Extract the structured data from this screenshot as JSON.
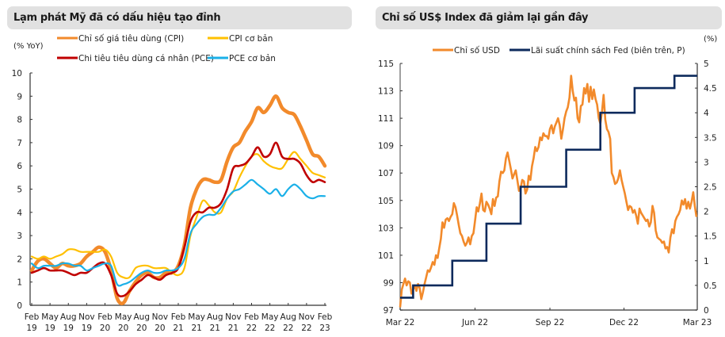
{
  "chart_data": [
    {
      "type": "line",
      "title": "Lạm phát Mỹ đã có dấu hiệu tạo đỉnh",
      "ylabel": "(% YoY)",
      "xlabel": "",
      "ylim": [
        0,
        10
      ],
      "yticks": [
        0,
        1,
        2,
        3,
        4,
        5,
        6,
        7,
        8,
        9,
        10
      ],
      "xtick_labels": [
        [
          "Feb",
          "19"
        ],
        [
          "May",
          "19"
        ],
        [
          "Aug",
          "19"
        ],
        [
          "Nov",
          "19"
        ],
        [
          "Feb",
          "20"
        ],
        [
          "May",
          "20"
        ],
        [
          "Aug",
          "20"
        ],
        [
          "Nov",
          "20"
        ],
        [
          "Feb",
          "21"
        ],
        [
          "May",
          "21"
        ],
        [
          "Aug",
          "21"
        ],
        [
          "Nov",
          "21"
        ],
        [
          "Feb",
          "22"
        ],
        [
          "May",
          "22"
        ],
        [
          "Aug",
          "22"
        ],
        [
          "Nov",
          "22"
        ],
        [
          "Feb",
          "23"
        ]
      ],
      "x": [
        "2019-02",
        "2019-03",
        "2019-04",
        "2019-05",
        "2019-06",
        "2019-07",
        "2019-08",
        "2019-09",
        "2019-10",
        "2019-11",
        "2019-12",
        "2020-01",
        "2020-02",
        "2020-03",
        "2020-04",
        "2020-05",
        "2020-06",
        "2020-07",
        "2020-08",
        "2020-09",
        "2020-10",
        "2020-11",
        "2020-12",
        "2021-01",
        "2021-02",
        "2021-03",
        "2021-04",
        "2021-05",
        "2021-06",
        "2021-07",
        "2021-08",
        "2021-09",
        "2021-10",
        "2021-11",
        "2021-12",
        "2022-01",
        "2022-02",
        "2022-03",
        "2022-04",
        "2022-05",
        "2022-06",
        "2022-07",
        "2022-08",
        "2022-09",
        "2022-10",
        "2022-11",
        "2022-12",
        "2023-01",
        "2023-02"
      ],
      "legend_position": "top",
      "grid": false,
      "series": [
        {
          "name": "Chỉ số giá tiêu dùng (CPI)",
          "color": "#f28a2b",
          "width": 4.5,
          "values": [
            1.5,
            1.9,
            2.0,
            1.8,
            1.6,
            1.8,
            1.7,
            1.7,
            1.8,
            2.1,
            2.3,
            2.5,
            2.3,
            1.5,
            0.3,
            0.1,
            0.6,
            1.0,
            1.3,
            1.4,
            1.2,
            1.2,
            1.4,
            1.4,
            1.7,
            2.6,
            4.2,
            5.0,
            5.4,
            5.4,
            5.3,
            5.4,
            6.2,
            6.8,
            7.0,
            7.5,
            7.9,
            8.5,
            8.3,
            8.6,
            9.0,
            8.5,
            8.3,
            8.2,
            7.7,
            7.1,
            6.5,
            6.4,
            6.0
          ]
        },
        {
          "name": "CPI cơ bản",
          "color": "#ffc000",
          "width": 2.2,
          "values": [
            2.1,
            2.0,
            2.1,
            2.0,
            2.1,
            2.2,
            2.4,
            2.4,
            2.3,
            2.3,
            2.3,
            2.3,
            2.4,
            2.1,
            1.4,
            1.2,
            1.2,
            1.6,
            1.7,
            1.7,
            1.6,
            1.6,
            1.6,
            1.4,
            1.3,
            1.6,
            3.0,
            3.8,
            4.5,
            4.3,
            4.0,
            4.0,
            4.6,
            4.9,
            5.5,
            6.0,
            6.4,
            6.5,
            6.2,
            6.0,
            5.9,
            5.9,
            6.3,
            6.6,
            6.3,
            6.0,
            5.7,
            5.6,
            5.5
          ]
        },
        {
          "name": "Chi tiêu tiêu dùng cá nhân (PCE)",
          "color": "#c00000",
          "width": 2.6,
          "values": [
            1.4,
            1.5,
            1.6,
            1.5,
            1.5,
            1.5,
            1.4,
            1.3,
            1.4,
            1.4,
            1.6,
            1.8,
            1.8,
            1.3,
            0.5,
            0.4,
            0.6,
            0.9,
            1.1,
            1.3,
            1.2,
            1.1,
            1.3,
            1.4,
            1.6,
            2.5,
            3.6,
            4.0,
            4.0,
            4.2,
            4.2,
            4.4,
            5.0,
            5.9,
            6.0,
            6.1,
            6.4,
            6.8,
            6.4,
            6.5,
            7.0,
            6.4,
            6.3,
            6.3,
            6.1,
            5.6,
            5.3,
            5.4,
            5.3
          ]
        },
        {
          "name": "PCE cơ bản",
          "color": "#1ab0e8",
          "width": 2.2,
          "values": [
            1.8,
            1.6,
            1.7,
            1.7,
            1.7,
            1.8,
            1.8,
            1.7,
            1.7,
            1.5,
            1.6,
            1.7,
            1.8,
            1.7,
            0.9,
            0.9,
            1.0,
            1.2,
            1.4,
            1.5,
            1.4,
            1.4,
            1.5,
            1.5,
            1.6,
            2.0,
            3.1,
            3.5,
            3.8,
            3.9,
            3.9,
            4.2,
            4.6,
            4.9,
            5.0,
            5.2,
            5.4,
            5.2,
            5.0,
            4.8,
            5.0,
            4.7,
            5.0,
            5.2,
            5.0,
            4.7,
            4.6,
            4.7,
            4.7
          ]
        }
      ]
    },
    {
      "type": "line",
      "title": "Chỉ số US$ Index đã giảm lại gần đây",
      "ylabel_left": "",
      "ylabel_right": "(%)",
      "xlabel": "",
      "ylim_left": [
        97,
        115
      ],
      "ylim_right": [
        0,
        5
      ],
      "yticks_left": [
        97,
        99,
        101,
        103,
        105,
        107,
        109,
        111,
        113,
        115
      ],
      "yticks_right": [
        0,
        0.5,
        1,
        1.5,
        2,
        2.5,
        3,
        3.5,
        4,
        4.5,
        5
      ],
      "xtick_labels": [
        "Mar 22",
        "Jun 22",
        "Sep 22",
        "Dec 22",
        "Mar 23"
      ],
      "xlim_days": [
        0,
        365
      ],
      "xtick_days": [
        0,
        92,
        184,
        275,
        365
      ],
      "legend_position": "top",
      "grid": false,
      "series": [
        {
          "name": "Chỉ số USD",
          "color": "#f28a2b",
          "axis": "left",
          "width": 2.6,
          "x_days": [
            0,
            2,
            4,
            6,
            8,
            10,
            12,
            14,
            16,
            18,
            20,
            22,
            24,
            26,
            28,
            30,
            32,
            34,
            36,
            38,
            40,
            42,
            44,
            46,
            48,
            50,
            52,
            54,
            56,
            58,
            60,
            62,
            64,
            66,
            68,
            70,
            72,
            74,
            76,
            78,
            80,
            82,
            84,
            86,
            88,
            90,
            92,
            94,
            96,
            98,
            100,
            102,
            104,
            106,
            108,
            110,
            112,
            114,
            116,
            118,
            120,
            122,
            124,
            126,
            128,
            130,
            132,
            134,
            136,
            138,
            140,
            142,
            144,
            146,
            148,
            150,
            152,
            154,
            156,
            158,
            160,
            162,
            164,
            166,
            168,
            170,
            172,
            174,
            176,
            178,
            180,
            182,
            184,
            186,
            188,
            190,
            192,
            194,
            196,
            198,
            200,
            202,
            204,
            206,
            208,
            210,
            212,
            214,
            216,
            218,
            220,
            222,
            224,
            226,
            228,
            230,
            232,
            234,
            236,
            238,
            240,
            242,
            244,
            246,
            248,
            250,
            252,
            254,
            256,
            258,
            260,
            262,
            264,
            266,
            268,
            270,
            272,
            274,
            276,
            278,
            280,
            282,
            284,
            286,
            288,
            290,
            292,
            294,
            296,
            298,
            300,
            302,
            304,
            306,
            308,
            310,
            312,
            314,
            316,
            318,
            320,
            322,
            324,
            326,
            328,
            330,
            332,
            334,
            336,
            338,
            340,
            342,
            344,
            346,
            348,
            350,
            352,
            354,
            356,
            358,
            360,
            362,
            364
          ],
          "values": [
            97.2,
            98.5,
            98.9,
            99.3,
            98.8,
            99.1,
            99.0,
            98.2,
            98.5,
            98.8,
            98.4,
            98.9,
            98.6,
            97.8,
            98.3,
            98.9,
            99.4,
            99.9,
            99.8,
            100.1,
            100.5,
            100.3,
            101.0,
            100.8,
            101.5,
            102.2,
            103.4,
            103.0,
            103.6,
            103.7,
            103.5,
            103.8,
            104.0,
            104.8,
            104.5,
            103.9,
            103.2,
            102.6,
            102.4,
            102.0,
            101.7,
            101.9,
            102.3,
            101.8,
            102.4,
            102.6,
            103.5,
            104.5,
            104.2,
            104.8,
            105.5,
            104.3,
            104.2,
            104.9,
            104.7,
            104.4,
            104.0,
            105.1,
            104.6,
            105.2,
            105.3,
            106.4,
            107.1,
            107.0,
            107.2,
            108.1,
            108.5,
            107.9,
            107.3,
            106.6,
            106.9,
            107.2,
            106.5,
            105.7,
            105.9,
            106.5,
            106.4,
            105.5,
            105.8,
            106.8,
            106.5,
            107.5,
            108.1,
            108.9,
            108.6,
            108.9,
            109.6,
            109.4,
            109.9,
            109.7,
            109.7,
            109.5,
            110.2,
            110.5,
            109.9,
            110.4,
            110.7,
            111.0,
            110.5,
            109.5,
            110.2,
            111.0,
            111.5,
            111.8,
            112.5,
            114.1,
            113.0,
            112.3,
            112.5,
            111.0,
            110.7,
            111.9,
            112.0,
            113.2,
            112.8,
            113.5,
            112.2,
            113.3,
            112.4,
            113.1,
            112.4,
            112.0,
            111.0,
            110.6,
            111.5,
            112.7,
            110.9,
            110.2,
            110.0,
            109.5,
            107.0,
            106.7,
            106.2,
            106.3,
            106.6,
            107.2,
            106.5,
            106.0,
            105.5,
            104.9,
            104.3,
            104.6,
            104.5,
            104.1,
            104.3,
            103.9,
            103.3,
            104.4,
            104.1,
            103.9,
            103.7,
            103.5,
            103.6,
            103.1,
            103.4,
            104.6,
            104.1,
            102.8,
            102.3,
            102.2,
            102.1,
            101.9,
            102.0,
            101.5,
            101.6,
            101.2,
            102.3,
            102.9,
            102.6,
            103.5,
            103.8,
            104.0,
            104.3,
            105.0,
            104.7,
            105.1,
            104.4,
            104.9,
            104.4,
            104.9,
            105.6,
            104.6,
            103.8
          ]
        },
        {
          "name": "Lãi suất chính sách Fed (biên trên, P)",
          "color": "#0d2a5c",
          "axis": "right",
          "width": 2.6,
          "step": true,
          "x_days": [
            0,
            16,
            64,
            106,
            148,
            204,
            246,
            288,
            337,
            365
          ],
          "values": [
            0.25,
            0.5,
            1.0,
            1.75,
            2.5,
            3.25,
            4.0,
            4.5,
            4.75,
            4.75
          ]
        }
      ]
    }
  ]
}
